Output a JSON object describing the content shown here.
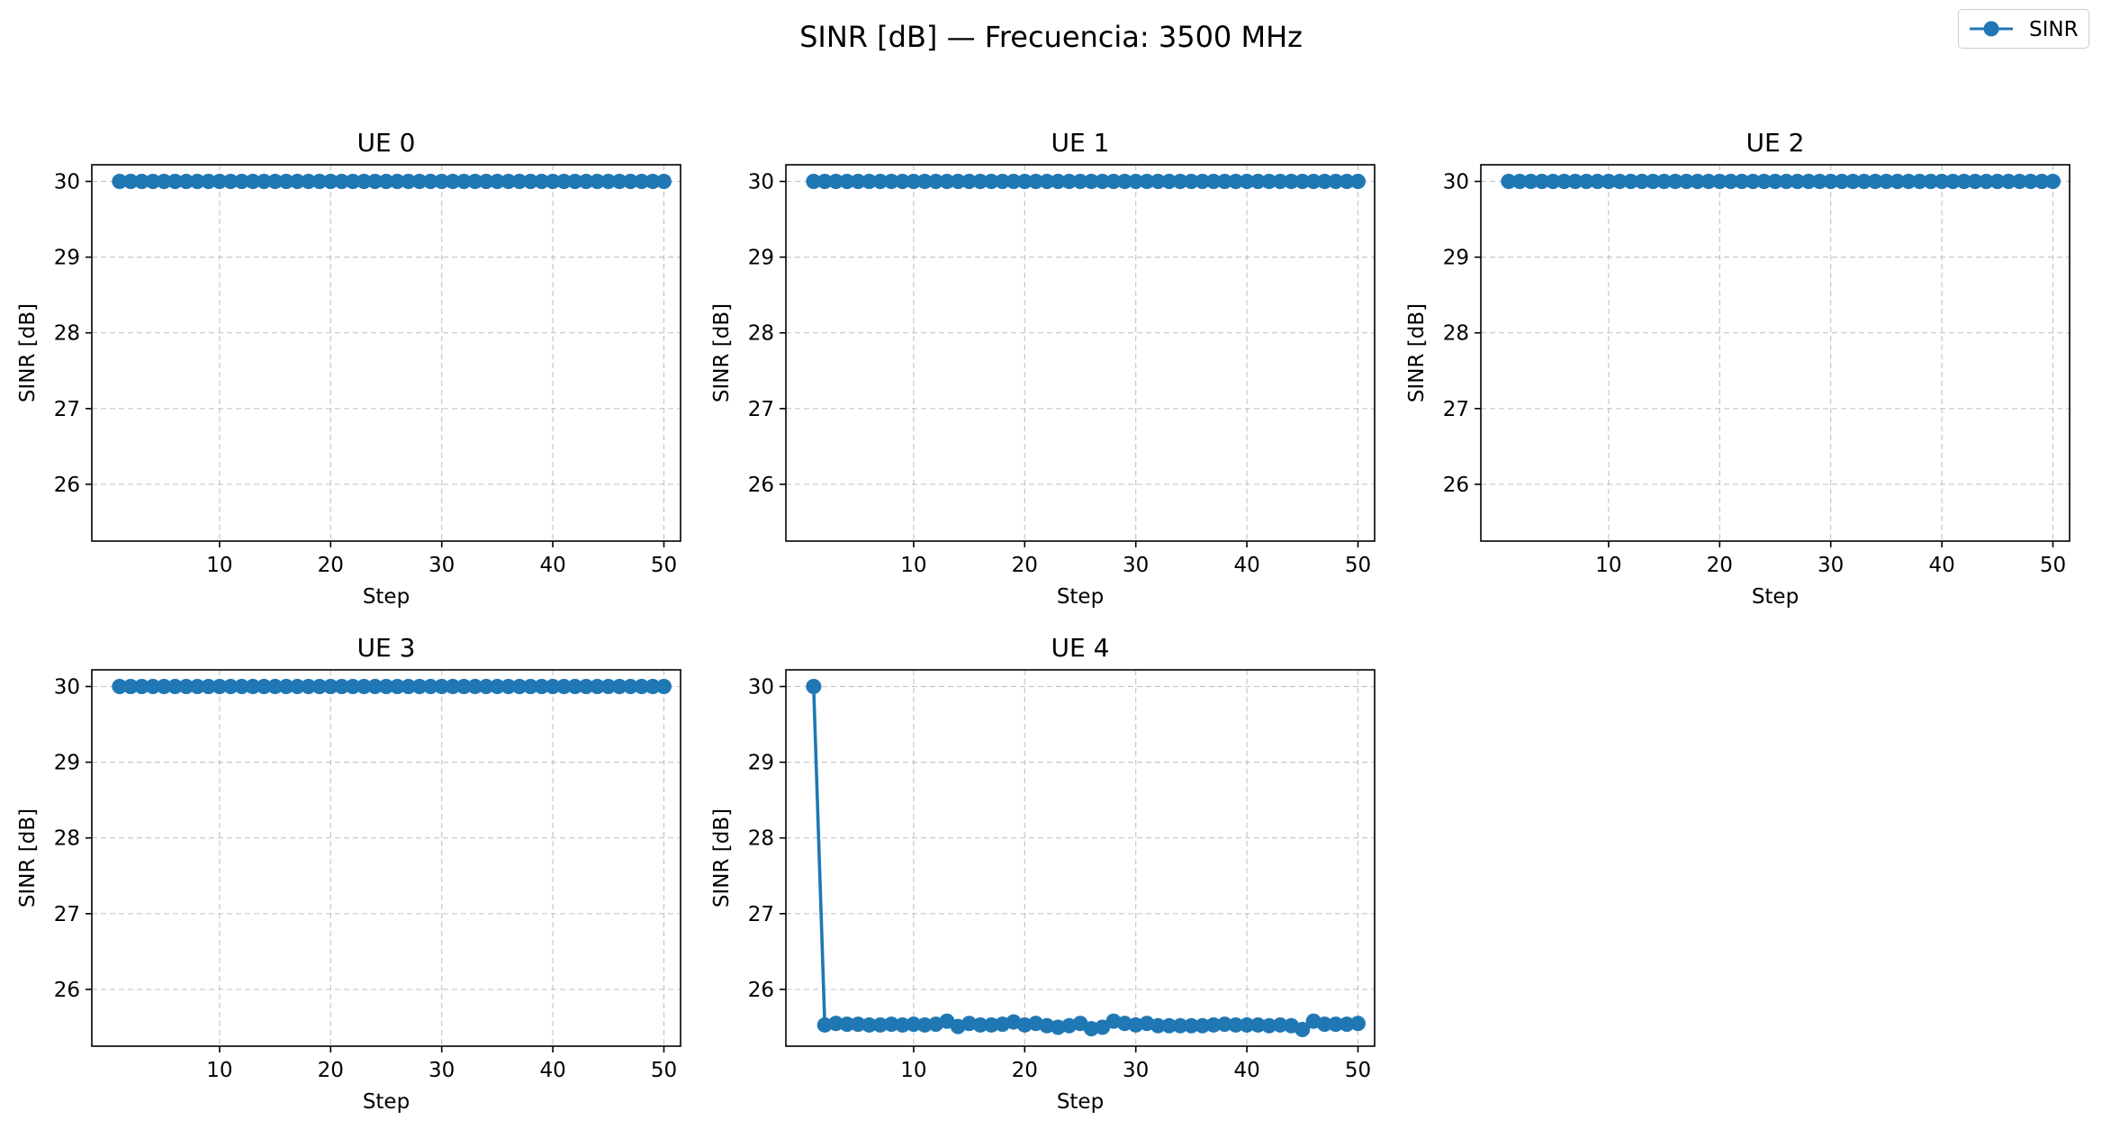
{
  "title": "SINR [dB] — Frecuencia: 3500 MHz",
  "legend": {
    "label": "SINR",
    "position": "top-right"
  },
  "colors": {
    "series": "#1f77b4",
    "grid": "#b0b0b0",
    "axes": "#000000"
  },
  "chart_data": [
    {
      "type": "line",
      "title": "UE 0",
      "xlabel": "Step",
      "ylabel": "SINR [dB]",
      "grid": true,
      "xlim": [
        -1.5,
        51.5
      ],
      "ylim": [
        25.25,
        30.22
      ],
      "xticks": [
        10,
        20,
        30,
        40,
        50
      ],
      "yticks": [
        26,
        27,
        28,
        29,
        30
      ],
      "series": [
        {
          "name": "SINR",
          "x": [
            1,
            2,
            3,
            4,
            5,
            6,
            7,
            8,
            9,
            10,
            11,
            12,
            13,
            14,
            15,
            16,
            17,
            18,
            19,
            20,
            21,
            22,
            23,
            24,
            25,
            26,
            27,
            28,
            29,
            30,
            31,
            32,
            33,
            34,
            35,
            36,
            37,
            38,
            39,
            40,
            41,
            42,
            43,
            44,
            45,
            46,
            47,
            48,
            49,
            50
          ],
          "values": [
            30,
            30,
            30,
            30,
            30,
            30,
            30,
            30,
            30,
            30,
            30,
            30,
            30,
            30,
            30,
            30,
            30,
            30,
            30,
            30,
            30,
            30,
            30,
            30,
            30,
            30,
            30,
            30,
            30,
            30,
            30,
            30,
            30,
            30,
            30,
            30,
            30,
            30,
            30,
            30,
            30,
            30,
            30,
            30,
            30,
            30,
            30,
            30,
            30,
            30
          ]
        }
      ]
    },
    {
      "type": "line",
      "title": "UE 1",
      "xlabel": "Step",
      "ylabel": "SINR [dB]",
      "grid": true,
      "xlim": [
        -1.5,
        51.5
      ],
      "ylim": [
        25.25,
        30.22
      ],
      "xticks": [
        10,
        20,
        30,
        40,
        50
      ],
      "yticks": [
        26,
        27,
        28,
        29,
        30
      ],
      "series": [
        {
          "name": "SINR",
          "x": [
            1,
            2,
            3,
            4,
            5,
            6,
            7,
            8,
            9,
            10,
            11,
            12,
            13,
            14,
            15,
            16,
            17,
            18,
            19,
            20,
            21,
            22,
            23,
            24,
            25,
            26,
            27,
            28,
            29,
            30,
            31,
            32,
            33,
            34,
            35,
            36,
            37,
            38,
            39,
            40,
            41,
            42,
            43,
            44,
            45,
            46,
            47,
            48,
            49,
            50
          ],
          "values": [
            30,
            30,
            30,
            30,
            30,
            30,
            30,
            30,
            30,
            30,
            30,
            30,
            30,
            30,
            30,
            30,
            30,
            30,
            30,
            30,
            30,
            30,
            30,
            30,
            30,
            30,
            30,
            30,
            30,
            30,
            30,
            30,
            30,
            30,
            30,
            30,
            30,
            30,
            30,
            30,
            30,
            30,
            30,
            30,
            30,
            30,
            30,
            30,
            30,
            30
          ]
        }
      ]
    },
    {
      "type": "line",
      "title": "UE 2",
      "xlabel": "Step",
      "ylabel": "SINR [dB]",
      "grid": true,
      "xlim": [
        -1.5,
        51.5
      ],
      "ylim": [
        25.25,
        30.22
      ],
      "xticks": [
        10,
        20,
        30,
        40,
        50
      ],
      "yticks": [
        26,
        27,
        28,
        29,
        30
      ],
      "series": [
        {
          "name": "SINR",
          "x": [
            1,
            2,
            3,
            4,
            5,
            6,
            7,
            8,
            9,
            10,
            11,
            12,
            13,
            14,
            15,
            16,
            17,
            18,
            19,
            20,
            21,
            22,
            23,
            24,
            25,
            26,
            27,
            28,
            29,
            30,
            31,
            32,
            33,
            34,
            35,
            36,
            37,
            38,
            39,
            40,
            41,
            42,
            43,
            44,
            45,
            46,
            47,
            48,
            49,
            50
          ],
          "values": [
            30,
            30,
            30,
            30,
            30,
            30,
            30,
            30,
            30,
            30,
            30,
            30,
            30,
            30,
            30,
            30,
            30,
            30,
            30,
            30,
            30,
            30,
            30,
            30,
            30,
            30,
            30,
            30,
            30,
            30,
            30,
            30,
            30,
            30,
            30,
            30,
            30,
            30,
            30,
            30,
            30,
            30,
            30,
            30,
            30,
            30,
            30,
            30,
            30,
            30
          ]
        }
      ]
    },
    {
      "type": "line",
      "title": "UE 3",
      "xlabel": "Step",
      "ylabel": "SINR [dB]",
      "grid": true,
      "xlim": [
        -1.5,
        51.5
      ],
      "ylim": [
        25.25,
        30.22
      ],
      "xticks": [
        10,
        20,
        30,
        40,
        50
      ],
      "yticks": [
        26,
        27,
        28,
        29,
        30
      ],
      "series": [
        {
          "name": "SINR",
          "x": [
            1,
            2,
            3,
            4,
            5,
            6,
            7,
            8,
            9,
            10,
            11,
            12,
            13,
            14,
            15,
            16,
            17,
            18,
            19,
            20,
            21,
            22,
            23,
            24,
            25,
            26,
            27,
            28,
            29,
            30,
            31,
            32,
            33,
            34,
            35,
            36,
            37,
            38,
            39,
            40,
            41,
            42,
            43,
            44,
            45,
            46,
            47,
            48,
            49,
            50
          ],
          "values": [
            30,
            30,
            30,
            30,
            30,
            30,
            30,
            30,
            30,
            30,
            30,
            30,
            30,
            30,
            30,
            30,
            30,
            30,
            30,
            30,
            30,
            30,
            30,
            30,
            30,
            30,
            30,
            30,
            30,
            30,
            30,
            30,
            30,
            30,
            30,
            30,
            30,
            30,
            30,
            30,
            30,
            30,
            30,
            30,
            30,
            30,
            30,
            30,
            30,
            30
          ]
        }
      ]
    },
    {
      "type": "line",
      "title": "UE 4",
      "xlabel": "Step",
      "ylabel": "SINR [dB]",
      "grid": true,
      "xlim": [
        -1.5,
        51.5
      ],
      "ylim": [
        25.25,
        30.22
      ],
      "xticks": [
        10,
        20,
        30,
        40,
        50
      ],
      "yticks": [
        26,
        27,
        28,
        29,
        30
      ],
      "series": [
        {
          "name": "SINR",
          "x": [
            1,
            2,
            3,
            4,
            5,
            6,
            7,
            8,
            9,
            10,
            11,
            12,
            13,
            14,
            15,
            16,
            17,
            18,
            19,
            20,
            21,
            22,
            23,
            24,
            25,
            26,
            27,
            28,
            29,
            30,
            31,
            32,
            33,
            34,
            35,
            36,
            37,
            38,
            39,
            40,
            41,
            42,
            43,
            44,
            45,
            46,
            47,
            48,
            49,
            50
          ],
          "values": [
            30.0,
            25.53,
            25.55,
            25.54,
            25.54,
            25.53,
            25.53,
            25.54,
            25.53,
            25.54,
            25.53,
            25.54,
            25.58,
            25.51,
            25.55,
            25.53,
            25.53,
            25.54,
            25.57,
            25.53,
            25.55,
            25.52,
            25.5,
            25.52,
            25.55,
            25.48,
            25.5,
            25.58,
            25.55,
            25.53,
            25.55,
            25.52,
            25.52,
            25.52,
            25.52,
            25.52,
            25.53,
            25.54,
            25.53,
            25.53,
            25.53,
            25.52,
            25.53,
            25.52,
            25.47,
            25.58,
            25.54,
            25.54,
            25.54,
            25.55
          ]
        }
      ]
    }
  ]
}
